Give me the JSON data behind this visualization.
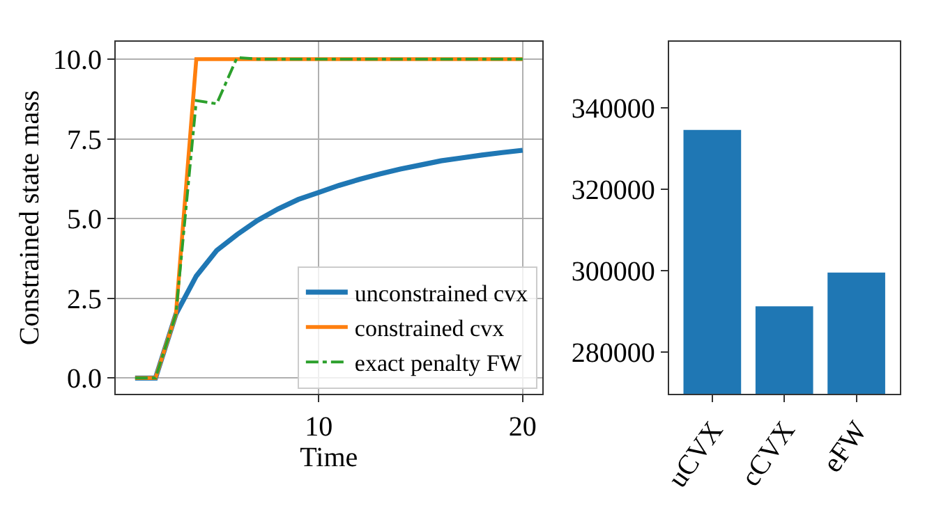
{
  "chart_data": [
    {
      "type": "line",
      "xlabel": "Time",
      "ylabel": "Constrained state mass",
      "x": [
        1,
        2,
        3,
        4,
        5,
        6,
        7,
        8,
        9,
        10,
        11,
        12,
        13,
        14,
        15,
        16,
        17,
        18,
        19,
        20
      ],
      "series": [
        {
          "name": "unconstrained cvx",
          "color": "#1f77b4",
          "line_style": "solid",
          "values": [
            0,
            0,
            2.0,
            3.2,
            4.0,
            4.5,
            4.94,
            5.3,
            5.6,
            5.82,
            6.04,
            6.23,
            6.4,
            6.55,
            6.68,
            6.81,
            6.9,
            6.99,
            7.07,
            7.14
          ]
        },
        {
          "name": "constrained cvx",
          "color": "#ff7f0e",
          "line_style": "solid",
          "values": [
            0,
            0,
            2.0,
            10,
            10,
            10,
            10,
            10,
            10,
            10,
            10,
            10,
            10,
            10,
            10,
            10,
            10,
            10,
            10,
            10
          ]
        },
        {
          "name": "exact penalty FW",
          "color": "#2ca02c",
          "line_style": "dashdot",
          "values": [
            0,
            0,
            2.0,
            8.7,
            8.6,
            10.05,
            10,
            10,
            10,
            10,
            10,
            10,
            10,
            10,
            10,
            10,
            10,
            10,
            10,
            10
          ]
        }
      ],
      "xlim": [
        0.05,
        20.95
      ],
      "xticks": [
        10,
        20
      ],
      "ylim": [
        -0.5,
        10.55
      ],
      "yticks": [
        {
          "value": 0,
          "label": "0.0"
        },
        {
          "value": 2.5,
          "label": "2.5"
        },
        {
          "value": 5,
          "label": "5.0"
        },
        {
          "value": 7.5,
          "label": "7.5"
        },
        {
          "value": 10,
          "label": "10.0"
        }
      ],
      "grid": true,
      "legend": "bottom right",
      "marker": "none"
    },
    {
      "type": "bar",
      "categories": [
        "uCVX",
        "cCVX",
        "eFW"
      ],
      "values": [
        334500,
        291200,
        299500
      ],
      "color": "#1f77b4",
      "ylim": [
        269700,
        356200
      ],
      "yticks": [
        280000,
        300000,
        320000,
        340000
      ],
      "grid": false
    }
  ]
}
